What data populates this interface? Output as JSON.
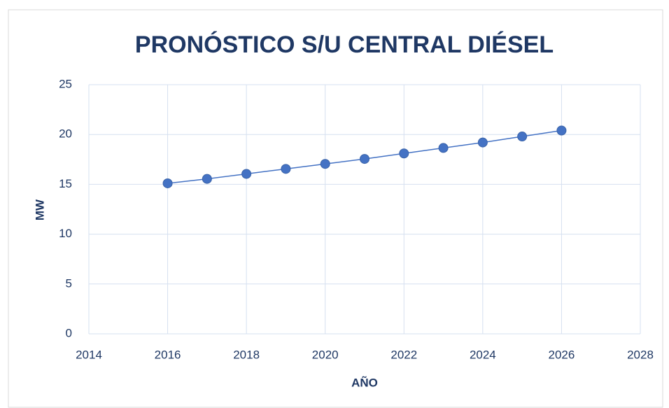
{
  "chart_data": {
    "type": "scatter",
    "title": "PRONÓSTICO S/U CENTRAL DIÉSEL",
    "x_label": "AÑO",
    "y_label": "MW",
    "series": [
      {
        "name": "MW",
        "color": "#4472c4",
        "x": [
          2016,
          2017,
          2018,
          2019,
          2020,
          2021,
          2022,
          2023,
          2024,
          2025,
          2026
        ],
        "values": [
          15.1,
          15.55,
          16.05,
          16.55,
          17.05,
          17.55,
          18.1,
          18.65,
          19.2,
          19.8,
          20.4
        ]
      }
    ],
    "xlim": [
      2014,
      2028
    ],
    "xticks": [
      2014,
      2016,
      2018,
      2020,
      2022,
      2024,
      2026,
      2028
    ],
    "ylim": [
      0,
      25
    ],
    "yticks": [
      0,
      5,
      10,
      15,
      20,
      25
    ],
    "grid": true,
    "lines": true
  }
}
